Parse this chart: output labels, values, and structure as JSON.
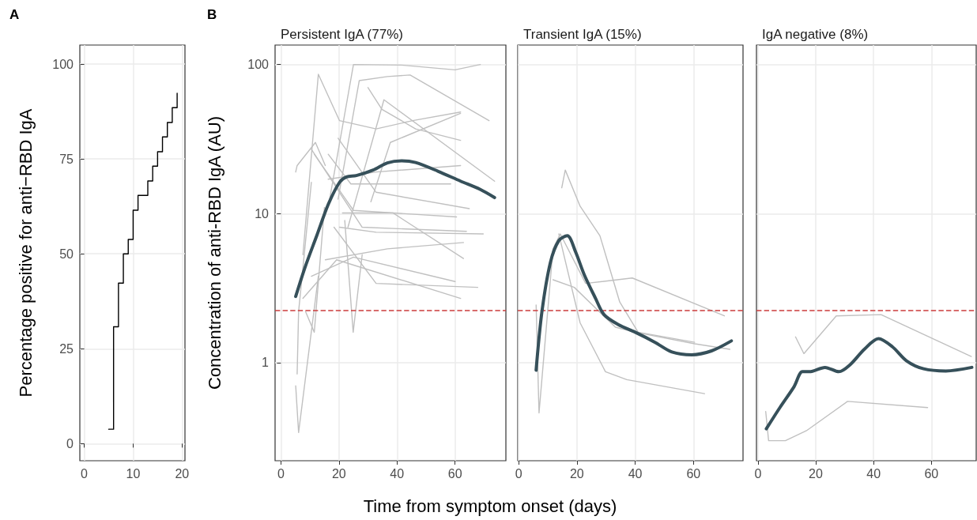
{
  "chart_data": [
    {
      "type": "step",
      "annotations": [
        "A"
      ],
      "ylabel": "Percentage positive for anti−RBD IgA",
      "xlim": [
        -0.9,
        20.6
      ],
      "xticks": [
        0,
        10,
        20
      ],
      "ylim": [
        -4.5,
        105
      ],
      "yticks": [
        0,
        25,
        50,
        75,
        100
      ],
      "grid": true,
      "series": [
        {
          "color": "#000000",
          "x": [
            5,
            6,
            7,
            8,
            9,
            10,
            11,
            13,
            14,
            15,
            16,
            17,
            18,
            19
          ],
          "values": [
            3.8,
            30.8,
            42.3,
            50,
            53.8,
            61.5,
            65.4,
            69.2,
            73.1,
            76.9,
            80.8,
            84.6,
            88.5,
            92.3
          ]
        }
      ]
    },
    {
      "type": "line",
      "title": "Persistent IgA (77%)",
      "annotations": [
        "B"
      ],
      "ylabel": "Concentration of anti-RBD IgA (AU)",
      "log": true,
      "xlim": [
        -2,
        77.5
      ],
      "xticks": [
        0,
        20,
        40,
        60
      ],
      "ylim": [
        0.22,
        135
      ],
      "yticks": [
        1,
        10,
        100
      ],
      "grid": true,
      "ref_lines": [
        {
          "axis": "y",
          "value": 2.24,
          "color": "#cc3d3d",
          "line_style": "dashed"
        }
      ],
      "series": [
        {
          "color": "#c0c0c0",
          "x": [
            16.8,
            25,
            41.6,
            60,
            68.7
          ],
          "values": [
            12.5,
            100,
            99,
            92,
            100
          ]
        },
        {
          "color": "#c0c0c0",
          "x": [
            19.7,
            27,
            36.7,
            44.5,
            71.7
          ],
          "values": [
            12.5,
            78,
            83,
            85,
            42
          ]
        },
        {
          "color": "#c0c0c0",
          "x": [
            7.6,
            12.9,
            20.2,
            32.8,
            45.4,
            61.9
          ],
          "values": [
            5.3,
            86,
            42,
            37,
            42,
            48
          ]
        },
        {
          "color": "#c0c0c0",
          "x": [
            30,
            34.8,
            46.4,
            61.9
          ],
          "values": [
            70,
            50,
            37,
            31
          ]
        },
        {
          "color": "#c0c0c0",
          "x": [
            23.1,
            35.5,
            73.6
          ],
          "values": [
            8.1,
            58,
            16.5
          ]
        },
        {
          "color": "#c0c0c0",
          "x": [
            31,
            37.7,
            61.9
          ],
          "values": [
            12,
            30,
            47
          ]
        },
        {
          "color": "#c0c0c0",
          "x": [
            16.3,
            24.1,
            58.5
          ],
          "values": [
            25,
            15.8,
            15.8
          ]
        },
        {
          "color": "#c0c0c0",
          "x": [
            19.7,
            32.8,
            64.9
          ],
          "values": [
            32,
            13.9,
            10.8
          ]
        },
        {
          "color": "#c0c0c0",
          "x": [
            11.5,
            25,
            60.5
          ],
          "values": [
            25,
            10.5,
            9.5
          ]
        },
        {
          "color": "#c0c0c0",
          "x": [
            10.5,
            28,
            63.9
          ],
          "values": [
            27,
            8.1,
            7.6
          ]
        },
        {
          "color": "#c0c0c0",
          "x": [
            20.2,
            32.8,
            69.7
          ],
          "values": [
            8.1,
            7.5,
            7.3
          ]
        },
        {
          "color": "#c0c0c0",
          "x": [
            15.3,
            36.7,
            62.9
          ],
          "values": [
            4.9,
            5.8,
            6.4
          ]
        },
        {
          "color": "#c0c0c0",
          "x": [
            21.2,
            38.6,
            62.9
          ],
          "values": [
            10.1,
            10.1,
            5
          ]
        },
        {
          "color": "#c0c0c0",
          "x": [
            18.3,
            32.8,
            67.8
          ],
          "values": [
            8.1,
            3.4,
            3.2
          ]
        },
        {
          "color": "#c0c0c0",
          "x": [
            10.5,
            25,
            60
          ],
          "values": [
            3.8,
            5.1,
            3.5
          ]
        },
        {
          "color": "#c0c0c0",
          "x": [
            7.6,
            19.2,
            61.9
          ],
          "values": [
            2.7,
            4.9,
            2.7
          ]
        },
        {
          "color": "#c0c0c0",
          "x": [
            22,
            24.9,
            28
          ],
          "values": [
            9,
            1.6,
            5.3
          ]
        },
        {
          "color": "#c0c0c0",
          "x": [
            5.1,
            6.1,
            12.9
          ],
          "values": [
            0.7,
            0.34,
            3.8
          ]
        },
        {
          "color": "#c0c0c0",
          "x": [
            5.1,
            5.6,
            11.9,
            15.3
          ],
          "values": [
            19,
            21,
            30,
            21
          ]
        },
        {
          "color": "#c0c0c0",
          "x": [
            16.3,
            32.8,
            61.9
          ],
          "values": [
            17,
            19,
            21
          ]
        },
        {
          "color": "#c0c0c0",
          "x": [
            5.6,
            6.1,
            10.5
          ],
          "values": [
            0.84,
            2.2,
            16.2
          ]
        },
        {
          "color": "#c0c0c0",
          "x": [
            8.5,
            11.5,
            15
          ],
          "values": [
            2.2,
            1.6,
            11
          ]
        },
        {
          "color": "#36505a",
          "x": [
            5.1,
            8.5,
            12.4,
            16.3,
            20.2,
            22.6,
            26,
            31.8,
            36.7,
            41.6,
            46.4,
            54.2,
            61.9,
            68.7,
            73.6
          ],
          "values": [
            2.78,
            4.46,
            7.15,
            11.5,
            16.2,
            17.6,
            18,
            19.6,
            21.9,
            22.6,
            22,
            19.2,
            16.5,
            14.5,
            12.8
          ]
        }
      ]
    },
    {
      "type": "line",
      "title": "Transient IgA (15%)",
      "xlabel": "Time from symptom onset (days)",
      "log": true,
      "xlim": [
        -0.3,
        77
      ],
      "xticks": [
        0,
        20,
        40,
        60
      ],
      "ylim": [
        0.22,
        135
      ],
      "yticks": [
        1,
        10,
        100
      ],
      "grid": true,
      "tick_labels": "x",
      "ref_lines": [
        {
          "axis": "y",
          "value": 2.24,
          "color": "#cc3d3d",
          "line_style": "dashed"
        }
      ],
      "series": [
        {
          "color": "#c0c0c0",
          "x": [
            14.8,
            16,
            21.1,
            27.9,
            34.7,
            41,
            60.4
          ],
          "values": [
            14.9,
            19.6,
            11.2,
            7.1,
            2.55,
            1.6,
            1.37
          ]
        },
        {
          "color": "#c0c0c0",
          "x": [
            6,
            7,
            11.8,
            14.3,
            23,
            39,
            70.6
          ],
          "values": [
            2.44,
            0.46,
            5.8,
            7.3,
            3.4,
            3.7,
            2.06
          ]
        },
        {
          "color": "#c0c0c0",
          "x": [
            11.8,
            19.1,
            33.2,
            40,
            60.4,
            72.5
          ],
          "values": [
            3.6,
            3.2,
            1.73,
            1.6,
            1.34,
            1.23
          ]
        },
        {
          "color": "#c0c0c0",
          "x": [
            13.8,
            21.1,
            29.8,
            37.1,
            63.8
          ],
          "values": [
            7.3,
            1.85,
            0.87,
            0.77,
            0.62
          ]
        },
        {
          "color": "#36505a",
          "x": [
            6,
            8,
            10.9,
            13.8,
            16.7,
            19.6,
            22.5,
            26.4,
            29.3,
            34.2,
            40,
            46.8,
            52.6,
            59.4,
            66.2,
            73
          ],
          "values": [
            0.89,
            2.2,
            4.7,
            6.6,
            7.1,
            5.5,
            3.9,
            2.7,
            2.1,
            1.8,
            1.6,
            1.37,
            1.18,
            1.13,
            1.2,
            1.4
          ]
        }
      ]
    },
    {
      "type": "line",
      "title": "IgA negative (8%)",
      "log": true,
      "xlim": [
        -0.5,
        75.5
      ],
      "xticks": [
        0,
        20,
        40,
        60
      ],
      "ylim": [
        0.22,
        135
      ],
      "yticks": [
        1,
        10,
        100
      ],
      "grid": true,
      "tick_labels": "x",
      "ref_lines": [
        {
          "axis": "y",
          "value": 2.24,
          "color": "#cc3d3d",
          "line_style": "dashed"
        }
      ],
      "series": [
        {
          "color": "#c0c0c0",
          "x": [
            13,
            15.9,
            27.1,
            42.6,
            73.8
          ],
          "values": [
            1.49,
            1.15,
            2.06,
            2.1,
            1.1
          ]
        },
        {
          "color": "#c0c0c0",
          "x": [
            2.7,
            3.7,
            9.5,
            16.8,
            31,
            58.7
          ],
          "values": [
            0.47,
            0.3,
            0.3,
            0.35,
            0.55,
            0.5
          ]
        },
        {
          "color": "#36505a",
          "x": [
            2.9,
            7.6,
            12.5,
            15.4,
            17.8,
            23.2,
            28,
            31.9,
            36.8,
            41.7,
            46.5,
            51.4,
            57.3,
            65,
            74
          ],
          "values": [
            0.36,
            0.5,
            0.69,
            0.87,
            0.87,
            0.93,
            0.87,
            0.97,
            1.23,
            1.45,
            1.28,
            1.03,
            0.91,
            0.88,
            0.93
          ]
        }
      ]
    }
  ]
}
